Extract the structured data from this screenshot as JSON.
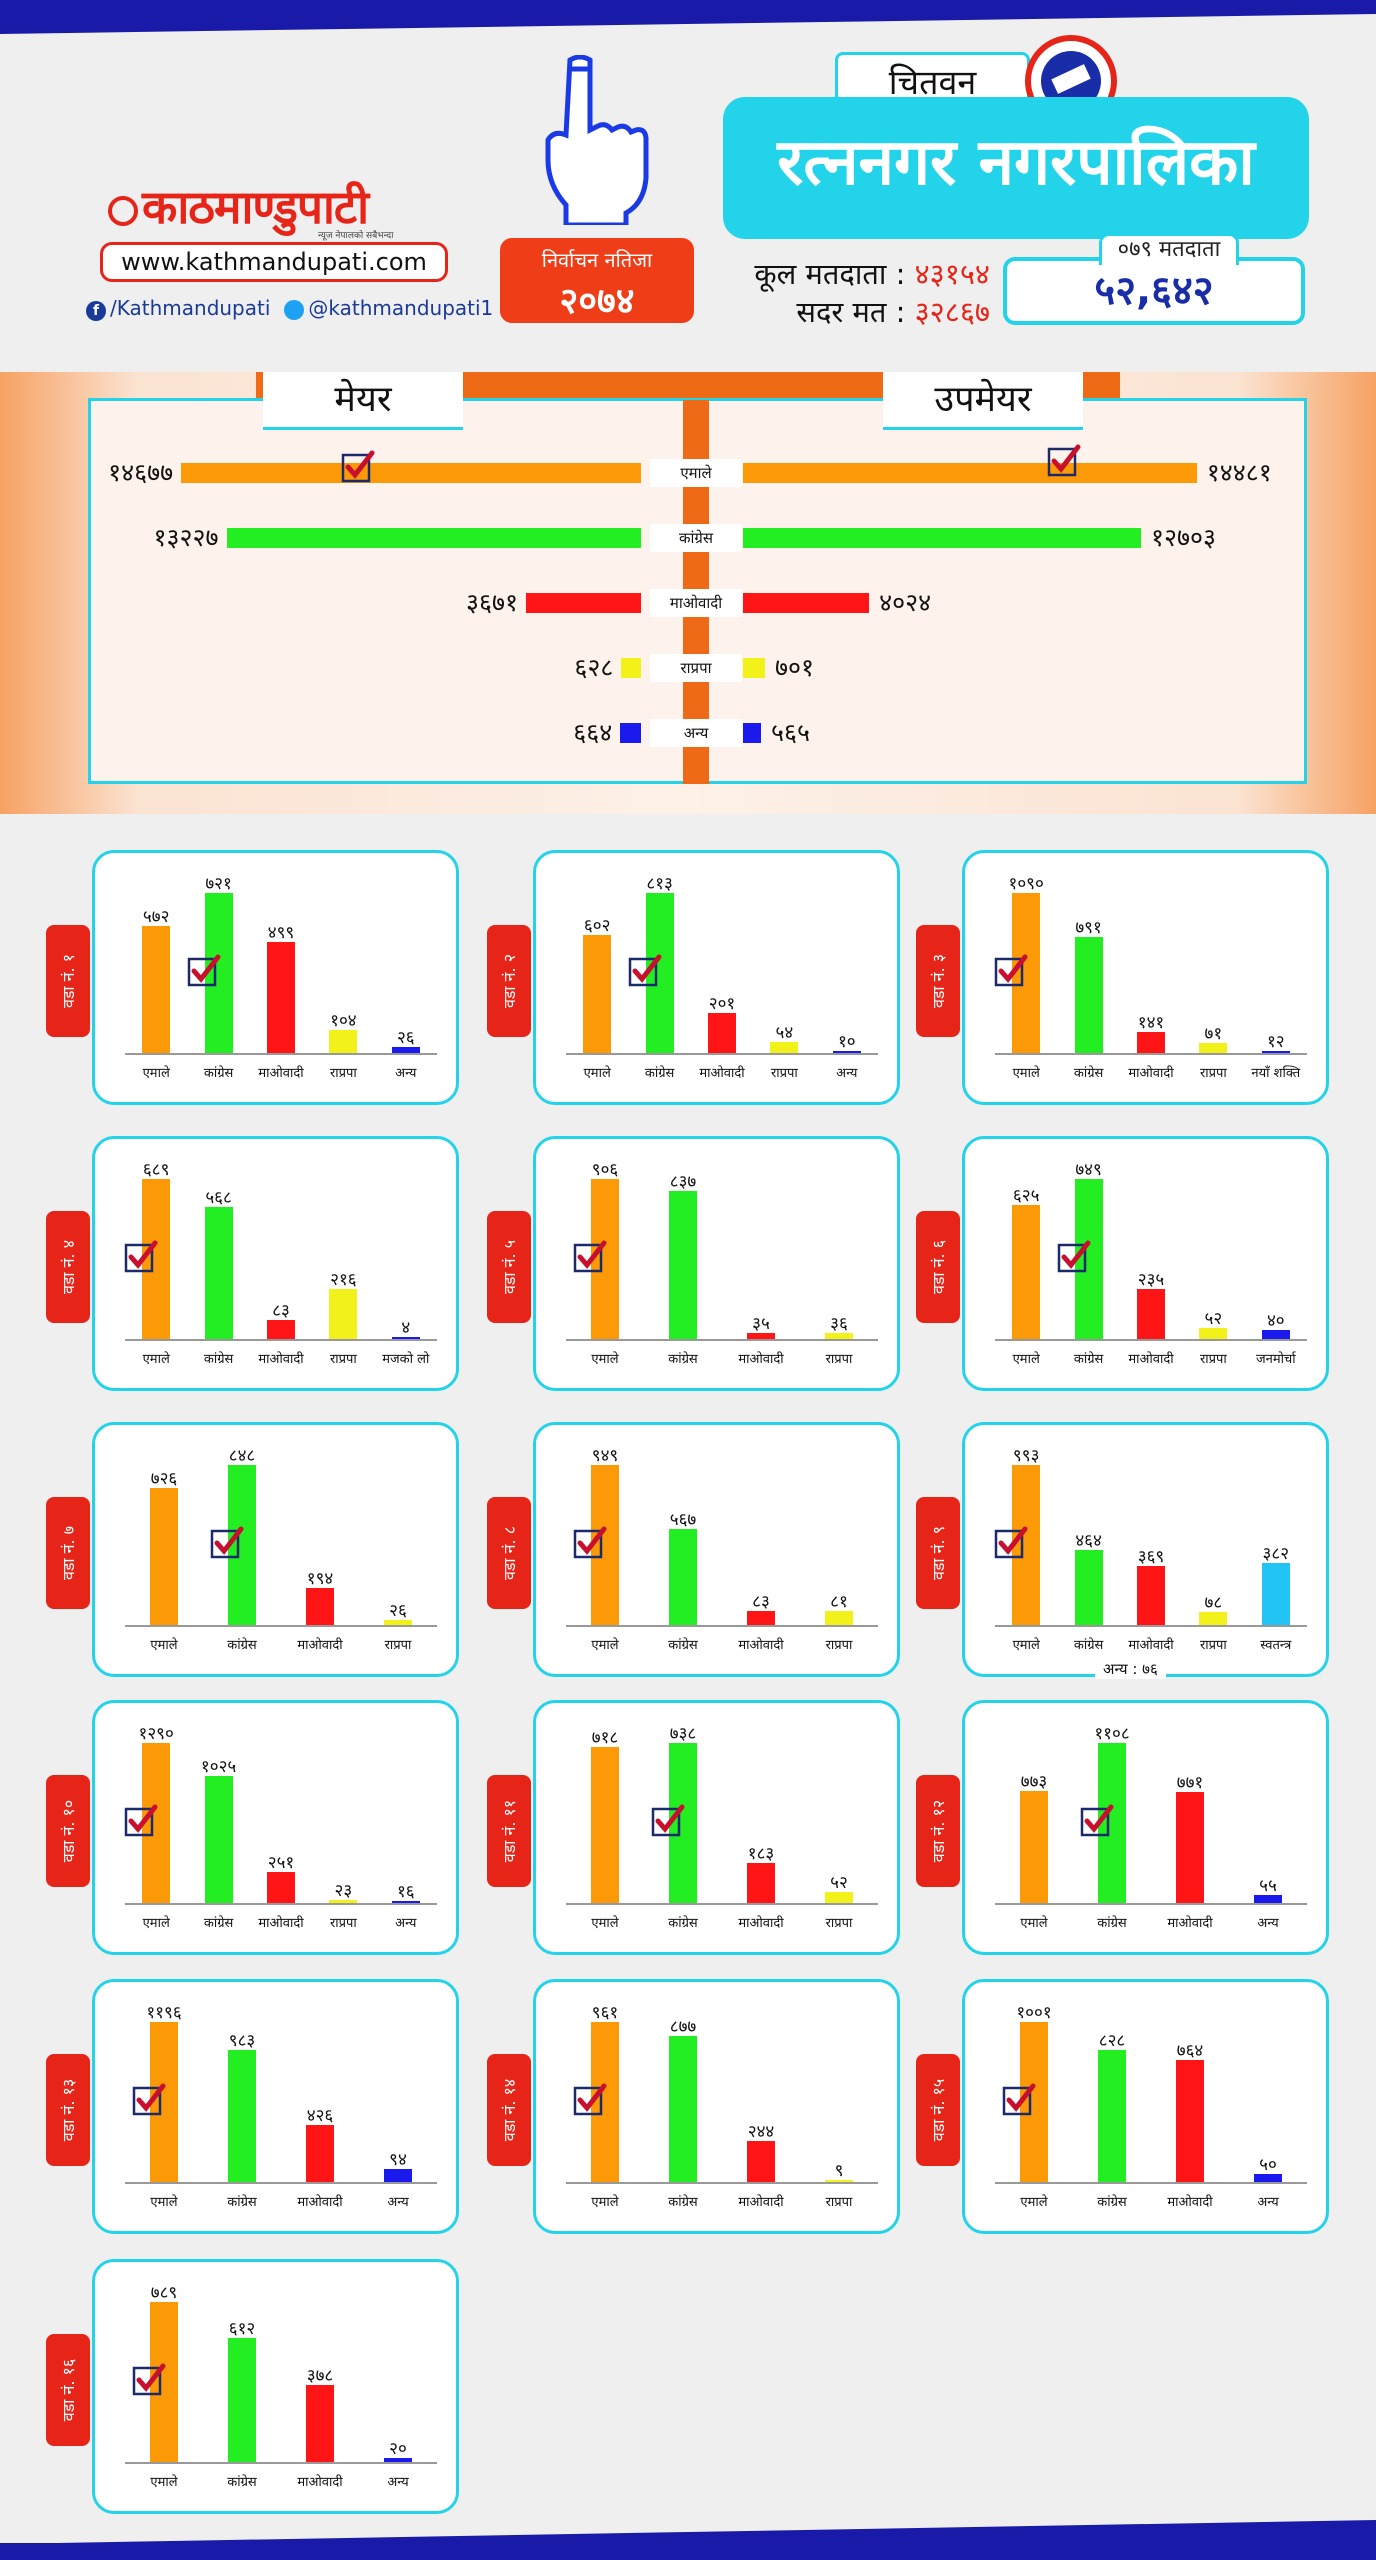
{
  "header": {
    "logo_text": "काठमाण्डुपाटी",
    "logo_tagline": "न्यूज नेपालको सबैभन्दा",
    "website": "www.kathmandupati.com",
    "facebook": "/Kathmandupati",
    "twitter": "@kathmandupati1",
    "result_line1": "निर्वाचन नतिजा",
    "result_line2": "२०७४",
    "district": "चितवन",
    "municipality": "रत्ननगर नगरपालिका",
    "total_voters_label": "कूल मतदाता :",
    "total_voters_value": "४३१५४",
    "valid_votes_label": "सदर मत :",
    "valid_votes_value": "३२८६७",
    "voters_079_label": "०७९ मतदाता",
    "voters_079_value": "५२,६४२"
  },
  "colors": {
    "emale": "#fb9a06",
    "congress": "#22ee22",
    "maoist": "#ff1515",
    "rpp": "#f2f21a",
    "other": "#1a1aee",
    "independent": "#22c4f5",
    "check": "#c8102e",
    "accent": "#22d3ea",
    "brand": "#e62418"
  },
  "chart_data": [
    {
      "type": "bar",
      "title_left": "मेयर",
      "title_right": "उपमेयर",
      "categories": [
        "एमाले",
        "कांग्रेस",
        "माओवादी",
        "राप्रपा",
        "अन्य"
      ],
      "series": [
        {
          "name": "मेयर",
          "values": [
            14677,
            13227,
            3671,
            628,
            664
          ],
          "labels": [
            "१४६७७",
            "१३२२७",
            "३६७१",
            "६२८",
            "६६४"
          ],
          "winner": 0
        },
        {
          "name": "उपमेयर",
          "values": [
            14481,
            12703,
            4024,
            701,
            565
          ],
          "labels": [
            "१४४८१",
            "१२७०३",
            "४०२४",
            "७०१",
            "५६५"
          ],
          "winner": 0
        }
      ],
      "bar_colors": [
        "emale",
        "congress",
        "maoist",
        "rpp",
        "other"
      ]
    },
    {
      "type": "bar",
      "title": "वडा नं. १",
      "categories": [
        "एमाले",
        "कांग्रेस",
        "माओवादी",
        "राप्रपा",
        "अन्य"
      ],
      "values": [
        572,
        721,
        499,
        104,
        26
      ],
      "labels": [
        "५७२",
        "७२१",
        "४९९",
        "१०४",
        "२६"
      ],
      "colors": [
        "emale",
        "congress",
        "maoist",
        "rpp",
        "other"
      ],
      "winner": 1
    },
    {
      "type": "bar",
      "title": "वडा नं. २",
      "categories": [
        "एमाले",
        "कांग्रेस",
        "माओवादी",
        "राप्रपा",
        "अन्य"
      ],
      "values": [
        602,
        813,
        201,
        54,
        10
      ],
      "labels": [
        "६०२",
        "८१३",
        "२०१",
        "५४",
        "१०"
      ],
      "colors": [
        "emale",
        "congress",
        "maoist",
        "rpp",
        "other"
      ],
      "winner": 1
    },
    {
      "type": "bar",
      "title": "वडा नं. ३",
      "categories": [
        "एमाले",
        "कांग्रेस",
        "माओवादी",
        "राप्रपा",
        "नयाँ शक्ति"
      ],
      "values": [
        1090,
        791,
        141,
        71,
        12
      ],
      "labels": [
        "१०९०",
        "७९१",
        "१४१",
        "७१",
        "१२"
      ],
      "colors": [
        "emale",
        "congress",
        "maoist",
        "rpp",
        "other"
      ],
      "winner": 0
    },
    {
      "type": "bar",
      "title": "वडा नं. ४",
      "categories": [
        "एमाले",
        "कांग्रेस",
        "माओवादी",
        "राप्रपा",
        "मजको लो"
      ],
      "values": [
        689,
        568,
        83,
        216,
        4
      ],
      "labels": [
        "६८९",
        "५६८",
        "८३",
        "२१६",
        "४"
      ],
      "colors": [
        "emale",
        "congress",
        "maoist",
        "rpp",
        "other"
      ],
      "winner": 0
    },
    {
      "type": "bar",
      "title": "वडा नं. ५",
      "categories": [
        "एमाले",
        "कांग्रेस",
        "माओवादी",
        "राप्रपा"
      ],
      "values": [
        906,
        837,
        35,
        36
      ],
      "labels": [
        "९०६",
        "८३७",
        "३५",
        "३६"
      ],
      "colors": [
        "emale",
        "congress",
        "maoist",
        "rpp"
      ],
      "winner": 0
    },
    {
      "type": "bar",
      "title": "वडा नं. ६",
      "categories": [
        "एमाले",
        "कांग्रेस",
        "माओवादी",
        "राप्रपा",
        "जनमोर्चा"
      ],
      "values": [
        625,
        749,
        235,
        52,
        40
      ],
      "labels": [
        "६२५",
        "७४९",
        "२३५",
        "५२",
        "४०"
      ],
      "colors": [
        "emale",
        "congress",
        "maoist",
        "rpp",
        "other"
      ],
      "winner": 1
    },
    {
      "type": "bar",
      "title": "वडा नं. ७",
      "categories": [
        "एमाले",
        "कांग्रेस",
        "माओवादी",
        "राप्रपा"
      ],
      "values": [
        726,
        848,
        194,
        26
      ],
      "labels": [
        "७२६",
        "८४८",
        "१९४",
        "२६"
      ],
      "colors": [
        "emale",
        "congress",
        "maoist",
        "rpp"
      ],
      "winner": 1
    },
    {
      "type": "bar",
      "title": "वडा नं. ८",
      "categories": [
        "एमाले",
        "कांग्रेस",
        "माओवादी",
        "राप्रपा"
      ],
      "values": [
        949,
        567,
        83,
        81
      ],
      "labels": [
        "९४९",
        "५६७",
        "८३",
        "८१"
      ],
      "colors": [
        "emale",
        "congress",
        "maoist",
        "rpp"
      ],
      "winner": 0
    },
    {
      "type": "bar",
      "title": "वडा नं. ९",
      "categories": [
        "एमाले",
        "कांग्रेस",
        "माओवादी",
        "राप्रपा",
        "स्वतन्त्र"
      ],
      "values": [
        993,
        464,
        369,
        78,
        382
      ],
      "labels": [
        "९९३",
        "४६४",
        "३६९",
        "७८",
        "३८२"
      ],
      "colors": [
        "emale",
        "congress",
        "maoist",
        "rpp",
        "independent"
      ],
      "winner": 0,
      "note": "अन्य : ७६"
    },
    {
      "type": "bar",
      "title": "वडा नं. १०",
      "categories": [
        "एमाले",
        "कांग्रेस",
        "माओवादी",
        "राप्रपा",
        "अन्य"
      ],
      "values": [
        1290,
        1025,
        251,
        23,
        16
      ],
      "labels": [
        "१२९०",
        "१०२५",
        "२५१",
        "२३",
        "१६"
      ],
      "colors": [
        "emale",
        "congress",
        "maoist",
        "rpp",
        "other"
      ],
      "winner": 0
    },
    {
      "type": "bar",
      "title": "वडा नं. ११",
      "categories": [
        "एमाले",
        "कांग्रेस",
        "माओवादी",
        "राप्रपा"
      ],
      "values": [
        718,
        738,
        183,
        52
      ],
      "labels": [
        "७१८",
        "७३८",
        "१८३",
        "५२"
      ],
      "colors": [
        "emale",
        "congress",
        "maoist",
        "rpp"
      ],
      "winner": 1
    },
    {
      "type": "bar",
      "title": "वडा नं. १२",
      "categories": [
        "एमाले",
        "कांग्रेस",
        "माओवादी",
        "अन्य"
      ],
      "values": [
        773,
        1108,
        771,
        55
      ],
      "labels": [
        "७७३",
        "११०८",
        "७७१",
        "५५"
      ],
      "colors": [
        "emale",
        "congress",
        "maoist",
        "other"
      ],
      "winner": 1
    },
    {
      "type": "bar",
      "title": "वडा नं. १३",
      "categories": [
        "एमाले",
        "कांग्रेस",
        "माओवादी",
        "अन्य"
      ],
      "values": [
        1196,
        983,
        426,
        94
      ],
      "labels": [
        "११९६",
        "९८३",
        "४२६",
        "९४"
      ],
      "colors": [
        "emale",
        "congress",
        "maoist",
        "other"
      ],
      "winner": 0
    },
    {
      "type": "bar",
      "title": "वडा नं. १४",
      "categories": [
        "एमाले",
        "कांग्रेस",
        "माओवादी",
        "राप्रपा"
      ],
      "values": [
        961,
        877,
        244,
        9
      ],
      "labels": [
        "९६१",
        "८७७",
        "२४४",
        "९"
      ],
      "colors": [
        "emale",
        "congress",
        "maoist",
        "rpp"
      ],
      "winner": 0
    },
    {
      "type": "bar",
      "title": "वडा नं. १५",
      "categories": [
        "एमाले",
        "कांग्रेस",
        "माओवादी",
        "अन्य"
      ],
      "values": [
        1001,
        828,
        764,
        50
      ],
      "labels": [
        "१००१",
        "८२८",
        "७६४",
        "५०"
      ],
      "colors": [
        "emale",
        "congress",
        "maoist",
        "other"
      ],
      "winner": 0
    },
    {
      "type": "bar",
      "title": "वडा नं. १६",
      "categories": [
        "एमाले",
        "कांग्रेस",
        "माओवादी",
        "अन्य"
      ],
      "values": [
        789,
        612,
        378,
        20
      ],
      "labels": [
        "७८९",
        "६१२",
        "३७८",
        "२०"
      ],
      "colors": [
        "emale",
        "congress",
        "maoist",
        "other"
      ],
      "winner": 0
    }
  ]
}
